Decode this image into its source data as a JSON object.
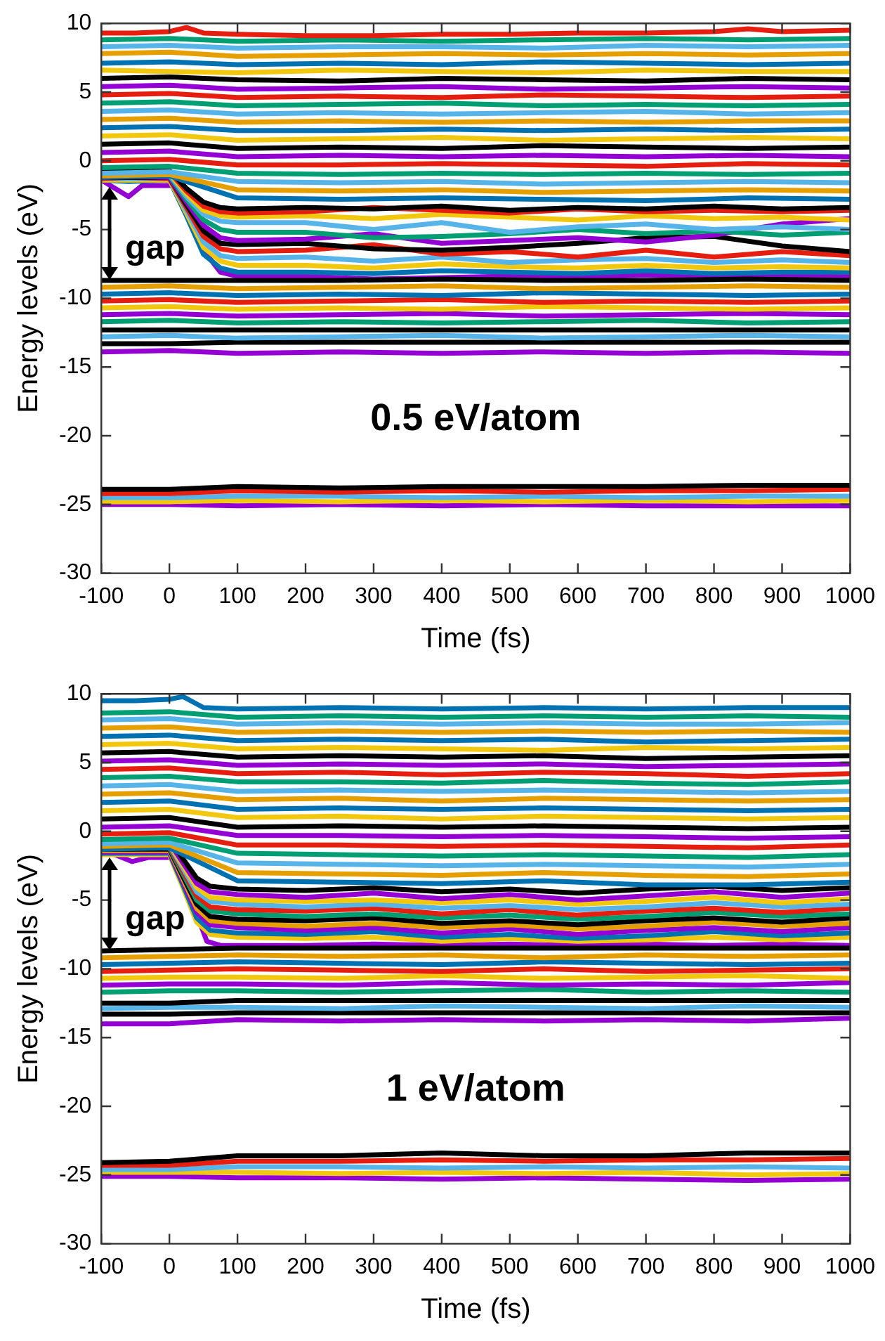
{
  "chart_data": [
    {
      "type": "line",
      "title": "0.5 eV/atom",
      "xlabel": "Time (fs)",
      "ylabel": "Energy levels (eV)",
      "annotations": [
        "gap"
      ],
      "marker": "none",
      "xlim": [
        -100,
        1000
      ],
      "ylim": [
        -30,
        10
      ],
      "xticks": [
        -100,
        0,
        100,
        200,
        300,
        400,
        500,
        600,
        700,
        800,
        900,
        1000
      ],
      "yticks": [
        -30,
        -25,
        -20,
        -15,
        -10,
        -5,
        0,
        5,
        10
      ],
      "x": [
        -100,
        0,
        100,
        250,
        400,
        550,
        700,
        850,
        1000
      ],
      "series": [
        {
          "color": "#e51e10",
          "x": [
            -100,
            -50,
            0,
            25,
            50,
            100,
            200,
            300,
            400,
            500,
            600,
            700,
            800,
            850,
            900,
            1000
          ],
          "values": [
            9.3,
            9.3,
            9.4,
            9.7,
            9.3,
            9.2,
            9.1,
            9.1,
            9.2,
            9.2,
            9.3,
            9.3,
            9.4,
            9.6,
            9.4,
            9.5
          ]
        },
        {
          "color": "#009e73",
          "values": [
            8.8,
            8.9,
            8.7,
            8.8,
            8.7,
            8.8,
            8.9,
            8.8,
            8.9
          ]
        },
        {
          "color": "#56b4e9",
          "values": [
            8.3,
            8.4,
            8.2,
            8.3,
            8.3,
            8.2,
            8.4,
            8.3,
            8.4
          ]
        },
        {
          "color": "#e69f00",
          "values": [
            7.8,
            7.9,
            7.6,
            7.7,
            7.8,
            7.7,
            7.8,
            7.7,
            7.8
          ]
        },
        {
          "color": "#0072b2",
          "values": [
            7.1,
            7.2,
            7.0,
            7.1,
            7.0,
            7.2,
            7.1,
            7.0,
            7.1
          ]
        },
        {
          "color": "#f2c80f",
          "values": [
            6.6,
            6.5,
            6.4,
            6.6,
            6.5,
            6.4,
            6.6,
            6.5,
            6.5
          ]
        },
        {
          "color": "#000000",
          "values": [
            6.0,
            6.1,
            5.9,
            5.8,
            6.0,
            5.9,
            5.8,
            6.0,
            5.9
          ]
        },
        {
          "color": "#9400d3",
          "values": [
            5.4,
            5.5,
            5.2,
            5.3,
            5.4,
            5.2,
            5.3,
            5.4,
            5.3
          ]
        },
        {
          "color": "#e51e10",
          "values": [
            4.8,
            4.9,
            4.6,
            4.7,
            4.6,
            4.8,
            4.7,
            4.6,
            4.7
          ]
        },
        {
          "color": "#009e73",
          "values": [
            4.2,
            4.3,
            4.0,
            4.1,
            4.2,
            4.0,
            4.1,
            4.0,
            4.1
          ]
        },
        {
          "color": "#56b4e9",
          "values": [
            3.6,
            3.7,
            3.4,
            3.5,
            3.4,
            3.5,
            3.6,
            3.4,
            3.5
          ]
        },
        {
          "color": "#e69f00",
          "values": [
            3.0,
            3.1,
            2.8,
            2.9,
            2.8,
            2.9,
            2.8,
            2.9,
            2.9
          ]
        },
        {
          "color": "#0072b2",
          "values": [
            2.4,
            2.5,
            2.2,
            2.2,
            2.3,
            2.2,
            2.3,
            2.2,
            2.3
          ]
        },
        {
          "color": "#f2c80f",
          "values": [
            1.8,
            1.9,
            1.5,
            1.6,
            1.7,
            1.5,
            1.6,
            1.7,
            1.6
          ]
        },
        {
          "color": "#000000",
          "values": [
            1.2,
            1.3,
            0.9,
            1.0,
            0.9,
            1.1,
            1.0,
            0.9,
            1.0
          ]
        },
        {
          "color": "#9400d3",
          "values": [
            0.6,
            0.7,
            0.3,
            0.4,
            0.3,
            0.4,
            0.3,
            0.4,
            0.3
          ]
        },
        {
          "color": "#e51e10",
          "values": [
            0.0,
            0.1,
            -0.3,
            -0.3,
            -0.2,
            -0.3,
            -0.4,
            -0.2,
            -0.3
          ]
        },
        {
          "color": "#009e73",
          "values": [
            -0.5,
            -0.4,
            -0.9,
            -1.0,
            -0.9,
            -1.0,
            -0.9,
            -1.0,
            -0.9
          ]
        },
        {
          "color": "#56b4e9",
          "values": [
            -0.9,
            -0.8,
            -1.5,
            -1.6,
            -1.5,
            -1.7,
            -1.6,
            -1.5,
            -1.6
          ]
        },
        {
          "color": "#e69f00",
          "values": [
            -1.1,
            -1.0,
            -2.1,
            -2.2,
            -2.1,
            -2.3,
            -2.2,
            -2.1,
            -2.2
          ]
        },
        {
          "color": "#0072b2",
          "values": [
            -1.2,
            -1.1,
            -2.7,
            -2.8,
            -2.7,
            -2.8,
            -2.9,
            -2.7,
            -2.8
          ]
        },
        {
          "color": "#000000",
          "values": [
            -8.7,
            -8.7,
            -8.7,
            -8.7,
            -8.6,
            -8.7,
            -8.7,
            -8.6,
            -8.7
          ]
        },
        {
          "color": "#e69f00",
          "values": [
            -9.2,
            -9.1,
            -9.3,
            -9.2,
            -9.1,
            -9.3,
            -9.2,
            -9.1,
            -9.2
          ]
        },
        {
          "color": "#0072b2",
          "values": [
            -9.7,
            -9.6,
            -9.8,
            -9.7,
            -9.8,
            -9.6,
            -9.7,
            -9.8,
            -9.7
          ]
        },
        {
          "color": "#e51e10",
          "values": [
            -10.2,
            -10.1,
            -10.3,
            -10.2,
            -10.1,
            -10.3,
            -10.2,
            -10.3,
            -10.2
          ]
        },
        {
          "color": "#f2c80f",
          "values": [
            -10.7,
            -10.6,
            -10.8,
            -10.7,
            -10.8,
            -10.6,
            -10.7,
            -10.8,
            -10.7
          ]
        },
        {
          "color": "#9400d3",
          "values": [
            -11.2,
            -11.1,
            -11.3,
            -11.2,
            -11.1,
            -11.3,
            -11.2,
            -11.1,
            -11.2
          ]
        },
        {
          "color": "#009e73",
          "values": [
            -11.7,
            -11.6,
            -11.8,
            -11.7,
            -11.8,
            -11.7,
            -11.6,
            -11.8,
            -11.7
          ]
        },
        {
          "color": "#000000",
          "values": [
            -12.3,
            -12.3,
            -12.3,
            -12.3,
            -12.3,
            -12.3,
            -12.3,
            -12.3,
            -12.3
          ]
        },
        {
          "color": "#56b4e9",
          "values": [
            -12.8,
            -12.7,
            -12.9,
            -12.8,
            -12.7,
            -12.9,
            -12.8,
            -12.7,
            -12.8
          ]
        },
        {
          "color": "#000000",
          "values": [
            -13.3,
            -13.3,
            -13.2,
            -13.2,
            -13.2,
            -13.2,
            -13.2,
            -13.2,
            -13.2
          ]
        },
        {
          "color": "#9400d3",
          "values": [
            -13.9,
            -13.8,
            -14.0,
            -13.9,
            -14.0,
            -13.9,
            -14.0,
            -13.9,
            -14.0
          ]
        },
        {
          "color": "#000000",
          "values": [
            -23.9,
            -23.9,
            -23.7,
            -23.8,
            -23.7,
            -23.7,
            -23.7,
            -23.6,
            -23.6
          ]
        },
        {
          "color": "#e51e10",
          "values": [
            -24.2,
            -24.2,
            -24.0,
            -24.1,
            -24.0,
            -24.1,
            -24.0,
            -24.0,
            -23.9
          ]
        },
        {
          "color": "#56b4e9",
          "values": [
            -24.5,
            -24.5,
            -24.4,
            -24.4,
            -24.5,
            -24.4,
            -24.5,
            -24.4,
            -24.4
          ]
        },
        {
          "color": "#f2c80f",
          "values": [
            -24.8,
            -24.8,
            -24.7,
            -24.8,
            -24.7,
            -24.8,
            -24.7,
            -24.8,
            -24.7
          ]
        },
        {
          "color": "#9400d3",
          "values": [
            -25.0,
            -25.0,
            -25.1,
            -25.0,
            -25.1,
            -25.0,
            -25.1,
            -25.1,
            -25.1
          ]
        },
        {
          "color": "#000000",
          "x": [
            -100,
            -60,
            0,
            25,
            50,
            75,
            100,
            200,
            300,
            400,
            500,
            600,
            700,
            800,
            900,
            1000
          ],
          "values": [
            -0.8,
            -0.7,
            -0.7,
            -2.0,
            -3.0,
            -3.4,
            -3.5,
            -3.4,
            -3.5,
            -3.3,
            -3.6,
            -3.4,
            -3.5,
            -3.3,
            -3.5,
            -3.4
          ]
        },
        {
          "color": "#e51e10",
          "x": [
            -100,
            -60,
            0,
            25,
            50,
            75,
            100,
            200,
            300,
            400,
            500,
            600,
            700,
            800,
            900,
            1000
          ],
          "values": [
            -0.9,
            -0.8,
            -0.8,
            -2.2,
            -3.3,
            -3.7,
            -3.8,
            -3.7,
            -3.4,
            -3.6,
            -3.8,
            -3.5,
            -3.7,
            -3.6,
            -3.7,
            -3.6
          ]
        },
        {
          "color": "#f2c80f",
          "x": [
            -100,
            -60,
            0,
            25,
            50,
            75,
            100,
            200,
            300,
            400,
            500,
            600,
            700,
            800,
            900,
            1000
          ],
          "values": [
            -1.0,
            -0.9,
            -0.9,
            -2.4,
            -3.6,
            -4.0,
            -4.1,
            -4.0,
            -4.2,
            -3.9,
            -4.1,
            -4.3,
            -4.0,
            -4.2,
            -4.1,
            -4.3
          ]
        },
        {
          "color": "#56b4e9",
          "x": [
            -100,
            -60,
            0,
            25,
            50,
            75,
            100,
            200,
            300,
            400,
            500,
            600,
            700,
            800,
            900,
            1000
          ],
          "values": [
            -1.0,
            -1.0,
            -1.0,
            -2.6,
            -3.9,
            -4.4,
            -4.5,
            -4.5,
            -5.0,
            -4.5,
            -5.2,
            -4.8,
            -4.6,
            -5.0,
            -4.8,
            -5.0
          ]
        },
        {
          "color": "#009e73",
          "x": [
            -100,
            -60,
            0,
            25,
            50,
            75,
            100,
            200,
            300,
            400,
            500,
            600,
            700,
            800,
            900,
            1000
          ],
          "values": [
            -1.1,
            -1.0,
            -1.1,
            -2.8,
            -4.3,
            -5.0,
            -5.2,
            -5.2,
            -5.6,
            -5.5,
            -5.3,
            -5.0,
            -5.3,
            -5.1,
            -5.4,
            -5.2
          ]
        },
        {
          "color": "#9400d3",
          "x": [
            -100,
            -60,
            0,
            25,
            50,
            75,
            100,
            200,
            300,
            400,
            500,
            600,
            700,
            800,
            900,
            1000
          ],
          "values": [
            -1.2,
            -1.1,
            -1.2,
            -3.0,
            -4.7,
            -5.6,
            -5.8,
            -5.7,
            -5.3,
            -6.0,
            -5.8,
            -5.6,
            -5.9,
            -5.4,
            -4.6,
            -4.2
          ]
        },
        {
          "color": "#000000",
          "x": [
            -100,
            -60,
            0,
            25,
            50,
            75,
            100,
            200,
            300,
            400,
            500,
            600,
            700,
            800,
            900,
            1000
          ],
          "values": [
            -1.2,
            -1.2,
            -1.2,
            -3.2,
            -5.1,
            -6.0,
            -6.1,
            -6.0,
            -6.4,
            -6.5,
            -6.3,
            -6.0,
            -5.6,
            -5.5,
            -6.2,
            -6.6
          ]
        },
        {
          "color": "#e51e10",
          "x": [
            -100,
            -60,
            0,
            25,
            50,
            75,
            100,
            200,
            300,
            400,
            500,
            600,
            700,
            800,
            900,
            1000
          ],
          "values": [
            -1.3,
            -1.2,
            -1.3,
            -3.4,
            -5.5,
            -6.4,
            -6.6,
            -6.5,
            -6.1,
            -6.8,
            -6.6,
            -7.0,
            -6.5,
            -7.0,
            -6.6,
            -6.9
          ]
        },
        {
          "color": "#56b4e9",
          "x": [
            -100,
            -60,
            0,
            25,
            50,
            75,
            100,
            200,
            300,
            400,
            500,
            600,
            700,
            800,
            900,
            1000
          ],
          "values": [
            -1.3,
            -1.3,
            -1.3,
            -3.6,
            -5.9,
            -6.9,
            -7.1,
            -7.0,
            -7.3,
            -7.0,
            -7.4,
            -7.2,
            -7.1,
            -7.4,
            -7.2,
            -7.4
          ]
        },
        {
          "color": "#f2c80f",
          "x": [
            -100,
            -60,
            0,
            25,
            50,
            75,
            100,
            200,
            300,
            400,
            500,
            600,
            700,
            800,
            900,
            1000
          ],
          "values": [
            -1.4,
            -1.4,
            -1.4,
            -3.8,
            -6.3,
            -7.3,
            -7.6,
            -7.6,
            -7.8,
            -7.5,
            -7.7,
            -7.8,
            -7.6,
            -7.8,
            -7.7,
            -7.8
          ]
        },
        {
          "color": "#0072b2",
          "x": [
            -100,
            -60,
            0,
            25,
            50,
            75,
            100,
            200,
            300,
            400,
            500,
            600,
            700,
            800,
            900,
            1000
          ],
          "values": [
            -1.4,
            -1.5,
            -1.4,
            -4.0,
            -6.8,
            -7.8,
            -8.1,
            -8.1,
            -8.2,
            -8.0,
            -8.1,
            -8.2,
            -8.0,
            -8.2,
            -8.1,
            -8.1
          ]
        },
        {
          "color": "#9400d3",
          "x": [
            -100,
            -80,
            -60,
            -40,
            10,
            30,
            50,
            75,
            100,
            200,
            300,
            400,
            500,
            600,
            700,
            800,
            900,
            1000
          ],
          "values": [
            -1.4,
            -2.0,
            -2.6,
            -1.8,
            -1.8,
            -3.8,
            -6.5,
            -8.1,
            -8.4,
            -8.4,
            -8.6,
            -8.5,
            -8.4,
            -8.5,
            -8.3,
            -8.5,
            -8.4,
            -8.4
          ]
        }
      ]
    },
    {
      "type": "line",
      "title": "1 eV/atom",
      "xlabel": "Time (fs)",
      "ylabel": "Energy levels (eV)",
      "annotations": [
        "gap"
      ],
      "marker": "none",
      "xlim": [
        -100,
        1000
      ],
      "ylim": [
        -30,
        10
      ],
      "xticks": [
        -100,
        0,
        100,
        200,
        300,
        400,
        500,
        600,
        700,
        800,
        900,
        1000
      ],
      "yticks": [
        -30,
        -25,
        -20,
        -15,
        -10,
        -5,
        0,
        5,
        10
      ],
      "x": [
        -100,
        0,
        100,
        250,
        400,
        550,
        700,
        850,
        1000
      ],
      "series": [
        {
          "color": "#0072b2",
          "x": [
            -100,
            -50,
            0,
            20,
            50,
            100,
            250,
            400,
            550,
            700,
            850,
            1000
          ],
          "values": [
            9.5,
            9.5,
            9.6,
            9.8,
            9.0,
            8.9,
            9.0,
            8.9,
            9.0,
            8.9,
            9.0,
            9.0
          ]
        },
        {
          "color": "#009e73",
          "values": [
            8.6,
            8.7,
            8.3,
            8.4,
            8.3,
            8.4,
            8.3,
            8.4,
            8.3
          ]
        },
        {
          "color": "#56b4e9",
          "values": [
            8.1,
            8.2,
            7.8,
            7.9,
            7.8,
            7.9,
            7.8,
            7.8,
            7.9
          ]
        },
        {
          "color": "#e69f00",
          "values": [
            7.5,
            7.6,
            7.2,
            7.3,
            7.2,
            7.3,
            7.2,
            7.3,
            7.2
          ]
        },
        {
          "color": "#0072b2",
          "values": [
            6.9,
            7.0,
            6.6,
            6.7,
            6.6,
            6.7,
            6.5,
            6.6,
            6.7
          ]
        },
        {
          "color": "#f2c80f",
          "values": [
            6.3,
            6.4,
            6.0,
            6.1,
            6.0,
            5.9,
            6.1,
            6.0,
            6.1
          ]
        },
        {
          "color": "#000000",
          "values": [
            5.7,
            5.8,
            5.4,
            5.5,
            5.4,
            5.5,
            5.3,
            5.4,
            5.5
          ]
        },
        {
          "color": "#9400d3",
          "values": [
            5.1,
            5.2,
            4.8,
            4.9,
            4.8,
            4.9,
            4.7,
            4.8,
            4.9
          ]
        },
        {
          "color": "#e51e10",
          "values": [
            4.5,
            4.6,
            4.2,
            4.3,
            4.1,
            4.3,
            4.2,
            4.0,
            4.2
          ]
        },
        {
          "color": "#009e73",
          "values": [
            3.9,
            4.0,
            3.6,
            3.6,
            3.5,
            3.7,
            3.5,
            3.4,
            3.6
          ]
        },
        {
          "color": "#56b4e9",
          "values": [
            3.3,
            3.4,
            2.9,
            3.0,
            2.9,
            3.0,
            2.9,
            2.8,
            2.9
          ]
        },
        {
          "color": "#e69f00",
          "values": [
            2.7,
            2.8,
            2.3,
            2.4,
            2.2,
            2.4,
            2.3,
            2.2,
            2.3
          ]
        },
        {
          "color": "#0072b2",
          "values": [
            2.1,
            2.2,
            1.6,
            1.7,
            1.6,
            1.7,
            1.6,
            1.5,
            1.6
          ]
        },
        {
          "color": "#f2c80f",
          "values": [
            1.5,
            1.6,
            1.0,
            1.1,
            0.9,
            1.1,
            1.0,
            0.9,
            1.0
          ]
        },
        {
          "color": "#000000",
          "values": [
            0.9,
            1.0,
            0.3,
            0.4,
            0.3,
            0.4,
            0.3,
            0.2,
            0.3
          ]
        },
        {
          "color": "#9400d3",
          "values": [
            0.3,
            0.4,
            -0.3,
            -0.3,
            -0.4,
            -0.3,
            -0.4,
            -0.5,
            -0.4
          ]
        },
        {
          "color": "#e51e10",
          "values": [
            -0.2,
            -0.1,
            -1.0,
            -1.0,
            -1.1,
            -1.0,
            -1.1,
            -1.2,
            -1.0
          ]
        },
        {
          "color": "#009e73",
          "values": [
            -0.6,
            -0.5,
            -1.6,
            -1.7,
            -1.8,
            -1.7,
            -1.8,
            -1.9,
            -1.7
          ]
        },
        {
          "color": "#56b4e9",
          "values": [
            -0.9,
            -0.8,
            -2.3,
            -2.4,
            -2.5,
            -2.4,
            -2.5,
            -2.6,
            -2.4
          ]
        },
        {
          "color": "#e69f00",
          "values": [
            -1.1,
            -1.0,
            -3.0,
            -3.1,
            -3.2,
            -3.0,
            -3.2,
            -3.3,
            -3.1
          ]
        },
        {
          "color": "#0072b2",
          "values": [
            -1.3,
            -1.2,
            -3.6,
            -3.7,
            -3.8,
            -3.6,
            -3.9,
            -3.9,
            -3.7
          ]
        },
        {
          "color": "#000000",
          "values": [
            -8.7,
            -8.6,
            -8.5,
            -8.5,
            -8.5,
            -8.5,
            -8.5,
            -8.5,
            -8.5
          ]
        },
        {
          "color": "#e69f00",
          "values": [
            -9.2,
            -9.1,
            -9.0,
            -9.1,
            -9.0,
            -9.2,
            -9.0,
            -9.1,
            -9.0
          ]
        },
        {
          "color": "#0072b2",
          "values": [
            -9.7,
            -9.6,
            -9.5,
            -9.6,
            -9.7,
            -9.5,
            -9.6,
            -9.7,
            -9.6
          ]
        },
        {
          "color": "#e51e10",
          "values": [
            -10.2,
            -10.1,
            -10.0,
            -10.1,
            -10.2,
            -10.0,
            -10.2,
            -10.1,
            -10.0
          ]
        },
        {
          "color": "#f2c80f",
          "values": [
            -10.7,
            -10.6,
            -10.6,
            -10.7,
            -10.5,
            -10.7,
            -10.6,
            -10.5,
            -10.7
          ]
        },
        {
          "color": "#9400d3",
          "values": [
            -11.2,
            -11.1,
            -11.1,
            -11.2,
            -11.0,
            -11.2,
            -11.1,
            -11.2,
            -11.0
          ]
        },
        {
          "color": "#009e73",
          "values": [
            -11.7,
            -11.6,
            -11.6,
            -11.7,
            -11.6,
            -11.5,
            -11.7,
            -11.6,
            -11.7
          ]
        },
        {
          "color": "#000000",
          "values": [
            -12.5,
            -12.5,
            -12.3,
            -12.3,
            -12.3,
            -12.3,
            -12.3,
            -12.3,
            -12.3
          ]
        },
        {
          "color": "#56b4e9",
          "values": [
            -12.9,
            -12.8,
            -12.8,
            -12.9,
            -12.7,
            -12.8,
            -12.9,
            -12.7,
            -12.8
          ]
        },
        {
          "color": "#000000",
          "values": [
            -13.3,
            -13.3,
            -13.2,
            -13.2,
            -13.2,
            -13.2,
            -13.2,
            -13.2,
            -13.2
          ]
        },
        {
          "color": "#9400d3",
          "values": [
            -14.0,
            -14.0,
            -13.7,
            -13.8,
            -13.7,
            -13.8,
            -13.7,
            -13.8,
            -13.6
          ]
        },
        {
          "color": "#000000",
          "values": [
            -24.1,
            -24.0,
            -23.6,
            -23.6,
            -23.4,
            -23.6,
            -23.6,
            -23.4,
            -23.4
          ]
        },
        {
          "color": "#e51e10",
          "values": [
            -24.3,
            -24.3,
            -24.0,
            -24.0,
            -23.9,
            -24.0,
            -23.9,
            -23.9,
            -23.8
          ]
        },
        {
          "color": "#56b4e9",
          "values": [
            -24.6,
            -24.6,
            -24.4,
            -24.4,
            -24.5,
            -24.4,
            -24.5,
            -24.4,
            -24.5
          ]
        },
        {
          "color": "#f2c80f",
          "values": [
            -24.8,
            -24.8,
            -24.8,
            -24.9,
            -24.8,
            -24.9,
            -24.8,
            -25.0,
            -24.9
          ]
        },
        {
          "color": "#9400d3",
          "values": [
            -25.1,
            -25.1,
            -25.2,
            -25.2,
            -25.3,
            -25.2,
            -25.3,
            -25.4,
            -25.3
          ]
        },
        {
          "color": "#000000",
          "x": [
            -100,
            -50,
            0,
            20,
            40,
            60,
            100,
            200,
            300,
            400,
            500,
            600,
            700,
            800,
            900,
            1000
          ],
          "values": [
            -0.6,
            -0.6,
            -0.6,
            -2.0,
            -3.4,
            -4.0,
            -4.2,
            -4.3,
            -4.1,
            -4.4,
            -4.2,
            -4.5,
            -4.2,
            -4.0,
            -4.3,
            -4.1
          ]
        },
        {
          "color": "#9400d3",
          "x": [
            -100,
            -50,
            0,
            20,
            40,
            60,
            100,
            200,
            300,
            400,
            500,
            600,
            700,
            800,
            900,
            1000
          ],
          "values": [
            -0.8,
            -0.8,
            -0.8,
            -2.3,
            -3.8,
            -4.4,
            -4.6,
            -4.8,
            -4.5,
            -4.9,
            -4.6,
            -5.0,
            -4.7,
            -4.4,
            -4.8,
            -4.5
          ]
        },
        {
          "color": "#f2c80f",
          "x": [
            -100,
            -50,
            0,
            20,
            40,
            60,
            100,
            200,
            300,
            400,
            500,
            600,
            700,
            800,
            900,
            1000
          ],
          "values": [
            -0.9,
            -0.9,
            -0.9,
            -2.5,
            -4.1,
            -4.8,
            -5.0,
            -5.1,
            -5.0,
            -5.2,
            -5.0,
            -5.3,
            -5.1,
            -4.8,
            -5.2,
            -4.9
          ]
        },
        {
          "color": "#56b4e9",
          "x": [
            -100,
            -50,
            0,
            20,
            40,
            60,
            100,
            200,
            300,
            400,
            500,
            600,
            700,
            800,
            900,
            1000
          ],
          "values": [
            -1.0,
            -1.0,
            -1.0,
            -2.7,
            -4.4,
            -5.1,
            -5.3,
            -5.5,
            -5.3,
            -5.6,
            -5.4,
            -5.7,
            -5.5,
            -5.2,
            -5.5,
            -5.3
          ]
        },
        {
          "color": "#e51e10",
          "x": [
            -100,
            -50,
            0,
            20,
            40,
            60,
            100,
            200,
            300,
            400,
            500,
            600,
            700,
            800,
            900,
            1000
          ],
          "values": [
            -1.1,
            -1.1,
            -1.1,
            -2.9,
            -4.7,
            -5.5,
            -5.7,
            -5.8,
            -5.6,
            -6.0,
            -5.7,
            -6.1,
            -5.8,
            -5.6,
            -5.9,
            -5.6
          ]
        },
        {
          "color": "#009e73",
          "x": [
            -100,
            -50,
            0,
            20,
            40,
            60,
            100,
            200,
            300,
            400,
            500,
            600,
            700,
            800,
            900,
            1000
          ],
          "values": [
            -1.2,
            -1.2,
            -1.2,
            -3.1,
            -5.0,
            -5.8,
            -6.0,
            -6.2,
            -6.0,
            -6.3,
            -6.1,
            -6.4,
            -6.2,
            -5.9,
            -6.2,
            -6.0
          ]
        },
        {
          "color": "#000000",
          "x": [
            -100,
            -50,
            0,
            20,
            40,
            60,
            100,
            200,
            300,
            400,
            500,
            600,
            700,
            800,
            900,
            1000
          ],
          "values": [
            -1.3,
            -1.3,
            -1.3,
            -3.3,
            -5.3,
            -6.2,
            -6.4,
            -6.5,
            -6.3,
            -6.7,
            -6.5,
            -6.8,
            -6.5,
            -6.3,
            -6.6,
            -6.3
          ]
        },
        {
          "color": "#e69f00",
          "x": [
            -100,
            -50,
            0,
            20,
            40,
            60,
            100,
            200,
            300,
            400,
            500,
            600,
            700,
            800,
            900,
            1000
          ],
          "values": [
            -1.4,
            -1.4,
            -1.4,
            -3.5,
            -5.6,
            -6.5,
            -6.7,
            -6.9,
            -6.7,
            -7.0,
            -6.8,
            -7.1,
            -6.9,
            -6.6,
            -6.9,
            -6.7
          ]
        },
        {
          "color": "#9400d3",
          "x": [
            -100,
            -50,
            0,
            20,
            40,
            60,
            100,
            200,
            300,
            400,
            500,
            600,
            700,
            800,
            900,
            1000
          ],
          "values": [
            -1.5,
            -1.5,
            -1.5,
            -3.7,
            -5.9,
            -6.8,
            -7.0,
            -7.2,
            -7.0,
            -7.4,
            -7.1,
            -7.5,
            -7.2,
            -7.0,
            -7.3,
            -7.0
          ]
        },
        {
          "color": "#0072b2",
          "x": [
            -100,
            -50,
            0,
            20,
            40,
            60,
            100,
            200,
            300,
            400,
            500,
            600,
            700,
            800,
            900,
            1000
          ],
          "values": [
            -1.6,
            -1.6,
            -1.6,
            -3.9,
            -6.3,
            -7.2,
            -7.4,
            -7.5,
            -7.3,
            -7.7,
            -7.5,
            -7.8,
            -7.6,
            -7.3,
            -7.6,
            -7.4
          ]
        },
        {
          "color": "#f2c80f",
          "x": [
            -100,
            -50,
            0,
            20,
            40,
            60,
            100,
            200,
            300,
            400,
            500,
            600,
            700,
            800,
            900,
            1000
          ],
          "values": [
            -1.7,
            -1.7,
            -1.7,
            -4.1,
            -6.6,
            -7.5,
            -7.7,
            -7.8,
            -7.7,
            -8.0,
            -7.8,
            -8.0,
            -7.9,
            -7.7,
            -7.9,
            -7.7
          ]
        },
        {
          "color": "#9400d3",
          "x": [
            -100,
            -80,
            -55,
            -30,
            10,
            25,
            40,
            55,
            75,
            100,
            200,
            300,
            400,
            500,
            600,
            700,
            800,
            900,
            1000
          ],
          "values": [
            -1.5,
            -1.7,
            -2.2,
            -1.9,
            -1.9,
            -3.5,
            -6.0,
            -8.0,
            -8.3,
            -8.3,
            -8.3,
            -8.2,
            -8.3,
            -8.2,
            -8.3,
            -8.2,
            -8.3,
            -8.2,
            -8.3
          ]
        }
      ]
    }
  ]
}
